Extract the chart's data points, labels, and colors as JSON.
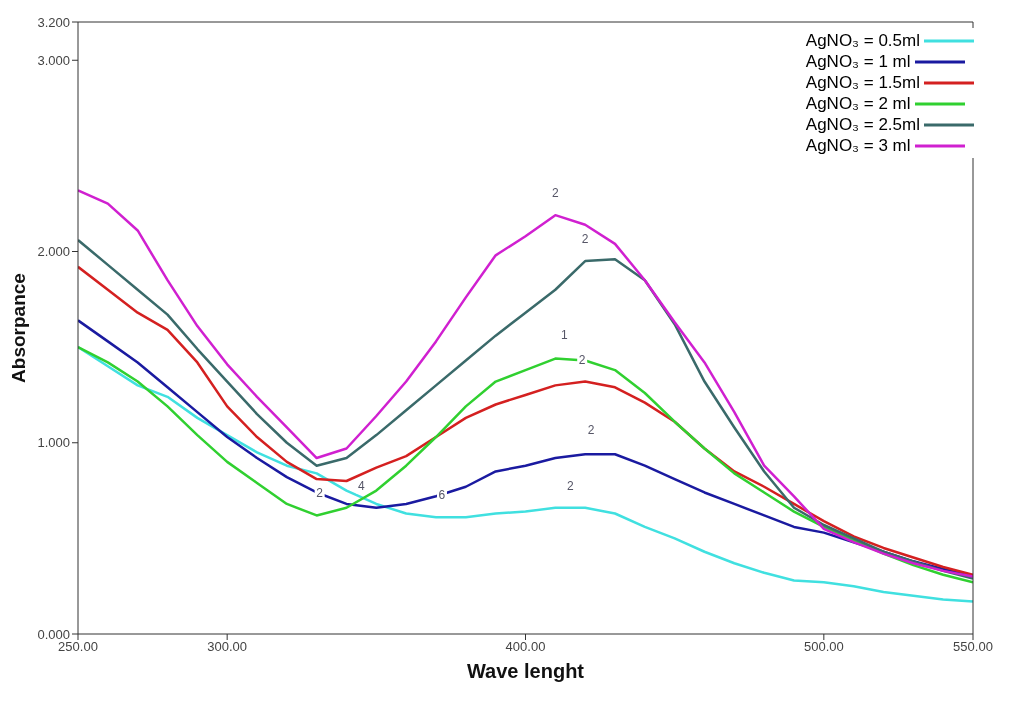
{
  "chart_data": {
    "type": "line",
    "xlabel": "Wave lenght",
    "ylabel": "Absorpance",
    "x": [
      250,
      260,
      270,
      280,
      290,
      300,
      310,
      320,
      330,
      340,
      350,
      360,
      370,
      380,
      390,
      400,
      410,
      420,
      430,
      440,
      450,
      460,
      470,
      480,
      490,
      500,
      510,
      520,
      530,
      540,
      550
    ],
    "series": [
      {
        "name": "AgNO₃ = 0.5ml",
        "color": "#40e0e0",
        "values": [
          1.5,
          1.4,
          1.3,
          1.24,
          1.13,
          1.04,
          0.95,
          0.88,
          0.84,
          0.75,
          0.68,
          0.63,
          0.61,
          0.61,
          0.63,
          0.64,
          0.66,
          0.66,
          0.63,
          0.56,
          0.5,
          0.43,
          0.37,
          0.32,
          0.28,
          0.27,
          0.25,
          0.22,
          0.2,
          0.18,
          0.17
        ]
      },
      {
        "name": "AgNO₃ = 1 ml",
        "color": "#1a1aa0",
        "values": [
          1.64,
          1.53,
          1.42,
          1.29,
          1.16,
          1.03,
          0.92,
          0.82,
          0.74,
          0.68,
          0.66,
          0.68,
          0.72,
          0.77,
          0.85,
          0.88,
          0.92,
          0.94,
          0.94,
          0.88,
          0.81,
          0.74,
          0.68,
          0.62,
          0.56,
          0.53,
          0.48,
          0.43,
          0.38,
          0.34,
          0.3
        ]
      },
      {
        "name": "AgNO₃ = 1.5ml",
        "color": "#d42020",
        "values": [
          1.92,
          1.8,
          1.68,
          1.59,
          1.42,
          1.19,
          1.03,
          0.9,
          0.81,
          0.8,
          0.87,
          0.93,
          1.03,
          1.13,
          1.2,
          1.25,
          1.3,
          1.32,
          1.29,
          1.21,
          1.11,
          0.97,
          0.85,
          0.77,
          0.68,
          0.59,
          0.51,
          0.45,
          0.4,
          0.35,
          0.31
        ]
      },
      {
        "name": "AgNO₃ = 2 ml",
        "color": "#30d030",
        "values": [
          1.5,
          1.42,
          1.32,
          1.19,
          1.04,
          0.9,
          0.79,
          0.68,
          0.62,
          0.66,
          0.75,
          0.88,
          1.03,
          1.19,
          1.32,
          1.38,
          1.44,
          1.43,
          1.38,
          1.26,
          1.11,
          0.97,
          0.84,
          0.74,
          0.64,
          0.56,
          0.49,
          0.42,
          0.36,
          0.31,
          0.27
        ]
      },
      {
        "name": "AgNO₃ = 2.5ml",
        "color": "#3a6a6a",
        "values": [
          2.06,
          1.93,
          1.8,
          1.67,
          1.49,
          1.32,
          1.15,
          1.0,
          0.88,
          0.92,
          1.04,
          1.17,
          1.3,
          1.43,
          1.56,
          1.68,
          1.8,
          1.95,
          1.96,
          1.85,
          1.62,
          1.32,
          1.08,
          0.85,
          0.66,
          0.57,
          0.5,
          0.43,
          0.38,
          0.33,
          0.29
        ]
      },
      {
        "name": "AgNO₃ = 3 ml",
        "color": "#d020d0",
        "values": [
          2.32,
          2.25,
          2.11,
          1.85,
          1.61,
          1.41,
          1.24,
          1.08,
          0.92,
          0.97,
          1.14,
          1.32,
          1.53,
          1.76,
          1.98,
          2.08,
          2.19,
          2.14,
          2.04,
          1.85,
          1.63,
          1.42,
          1.16,
          0.88,
          0.72,
          0.55,
          0.48,
          0.42,
          0.37,
          0.33,
          0.3
        ]
      }
    ],
    "xlim": [
      250,
      550
    ],
    "xticks": [
      {
        "value": 250,
        "label": "250.00"
      },
      {
        "value": 300,
        "label": "300.00"
      },
      {
        "value": 400,
        "label": "400.00"
      },
      {
        "value": 500,
        "label": "500.00"
      },
      {
        "value": 550,
        "label": "550.00"
      }
    ],
    "ylim": [
      0,
      3.2
    ],
    "yticks": [
      {
        "value": 0,
        "label": "0.000"
      },
      {
        "value": 1,
        "label": "1.000"
      },
      {
        "value": 2,
        "label": "2.000"
      },
      {
        "value": 3,
        "label": "3.000"
      },
      {
        "value": 3.2,
        "label": "3.200"
      }
    ],
    "grid": false,
    "legend": "top right",
    "annotations": [
      {
        "text": "2",
        "x": 410,
        "y": 2.19
      },
      {
        "text": "2",
        "x": 420,
        "y": 1.95
      },
      {
        "text": "1",
        "x": 413,
        "y": 1.45
      },
      {
        "text": "2",
        "x": 419,
        "y": 1.32
      },
      {
        "text": "2",
        "x": 422,
        "y": 0.95
      },
      {
        "text": "2",
        "x": 415,
        "y": 0.66
      },
      {
        "text": "2",
        "x": 331,
        "y": 0.62
      },
      {
        "text": "4",
        "x": 345,
        "y": 0.66
      },
      {
        "text": "6",
        "x": 372,
        "y": 0.61
      }
    ]
  }
}
